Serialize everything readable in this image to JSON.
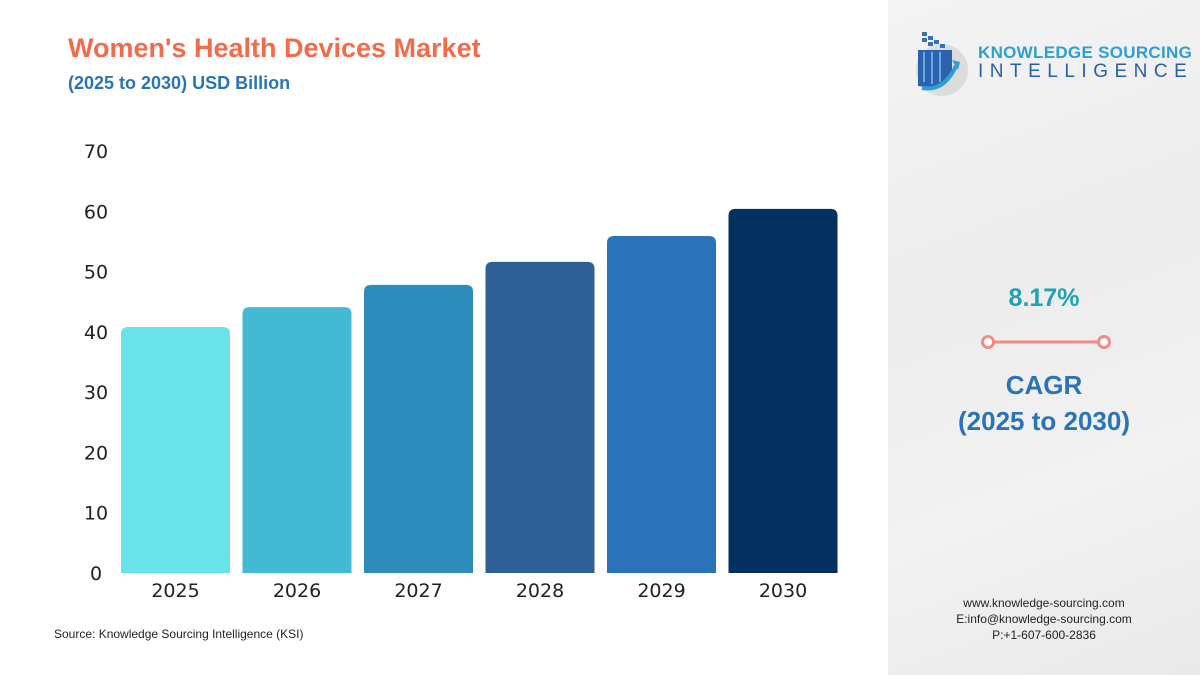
{
  "header": {
    "title": "Women's Health Devices Market",
    "subtitle": "(2025 to 2030) USD Billion"
  },
  "source": "Source: Knowledge Sourcing Intelligence (KSI)",
  "logo": {
    "line1": "KNOWLEDGE SOURCING",
    "line2": "INTELLIGENCE"
  },
  "cagr": {
    "value": "8.17%",
    "label": "CAGR",
    "period": "(2025 to 2030)"
  },
  "contact": {
    "web": "www.knowledge-sourcing.com",
    "email": "E:info@knowledge-sourcing.com",
    "phone": "P:+1-607-600-2836"
  },
  "chart_data": {
    "type": "bar",
    "title": "Women's Health Devices Market",
    "subtitle": "(2025 to 2030) USD Billion",
    "xlabel": "",
    "ylabel": "",
    "categories": [
      "2025",
      "2026",
      "2027",
      "2028",
      "2029",
      "2030"
    ],
    "values": [
      40.8,
      44.1,
      47.8,
      51.6,
      55.9,
      60.4
    ],
    "colors": [
      "#6ae3e8",
      "#43b9d4",
      "#2e8cba",
      "#2e5f97",
      "#2a73b8",
      "#03305f"
    ],
    "ylim": [
      0,
      70
    ],
    "yticks": [
      0,
      10,
      20,
      30,
      40,
      50,
      60,
      70
    ],
    "grid": false
  }
}
